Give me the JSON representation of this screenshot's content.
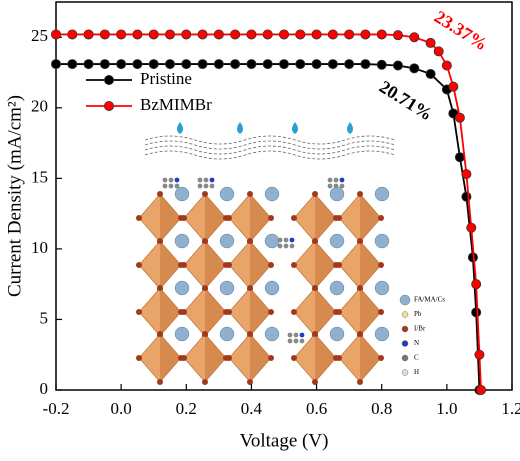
{
  "chart_data": {
    "type": "line",
    "x_label": "Voltage (V)",
    "y_label": "Current Density (mA/cm²)",
    "xlim": [
      -0.2,
      1.2
    ],
    "ylim": [
      0,
      27.5
    ],
    "xticks": [
      -0.2,
      {
        "value": 0,
        "label": "0.0"
      },
      0.2,
      0.4,
      0.6,
      0.8,
      {
        "value": 1,
        "label": "1.0"
      },
      1.2
    ],
    "yticks": [
      0,
      5,
      10,
      15,
      20,
      25
    ],
    "legend": "upper left",
    "annotations": [
      {
        "text": "23.37%",
        "color": "#ff0000"
      },
      {
        "text": "20.71%",
        "color": "#000000"
      }
    ],
    "inset_legend": [
      "FA/MA/Cs",
      "Pb",
      "I/Br",
      "N",
      "C",
      "H"
    ],
    "series": [
      {
        "name": "Pristine",
        "color": "#000000",
        "x": [
          -0.2,
          -0.15,
          -0.1,
          -0.05,
          0,
          0.05,
          0.1,
          0.15,
          0.2,
          0.25,
          0.3,
          0.35,
          0.4,
          0.45,
          0.5,
          0.55,
          0.6,
          0.65,
          0.7,
          0.75,
          0.8,
          0.85,
          0.9,
          0.95,
          1.0,
          1.02,
          1.04,
          1.06,
          1.08,
          1.09,
          1.1
        ],
        "values": [
          23.1,
          23.1,
          23.1,
          23.1,
          23.1,
          23.1,
          23.1,
          23.1,
          23.1,
          23.1,
          23.1,
          23.1,
          23.1,
          23.1,
          23.1,
          23.1,
          23.1,
          23.1,
          23.1,
          23.1,
          23.05,
          23.0,
          22.8,
          22.4,
          21.3,
          19.6,
          16.5,
          13.7,
          9.4,
          5.5,
          0
        ]
      },
      {
        "name": "BzMIMBr",
        "color": "#ff0000",
        "x": [
          -0.2,
          -0.15,
          -0.1,
          -0.05,
          0,
          0.05,
          0.1,
          0.15,
          0.2,
          0.25,
          0.3,
          0.35,
          0.4,
          0.45,
          0.5,
          0.55,
          0.6,
          0.65,
          0.7,
          0.75,
          0.8,
          0.85,
          0.9,
          0.95,
          0.975,
          1.0,
          1.02,
          1.04,
          1.06,
          1.075,
          1.09,
          1.1,
          1.105
        ],
        "values": [
          25.2,
          25.2,
          25.2,
          25.2,
          25.2,
          25.2,
          25.2,
          25.2,
          25.2,
          25.2,
          25.2,
          25.2,
          25.2,
          25.2,
          25.2,
          25.2,
          25.2,
          25.2,
          25.2,
          25.2,
          25.2,
          25.15,
          25.0,
          24.6,
          24.0,
          23.0,
          21.5,
          19.3,
          15.3,
          11.5,
          7.5,
          2.5,
          0
        ]
      }
    ]
  }
}
